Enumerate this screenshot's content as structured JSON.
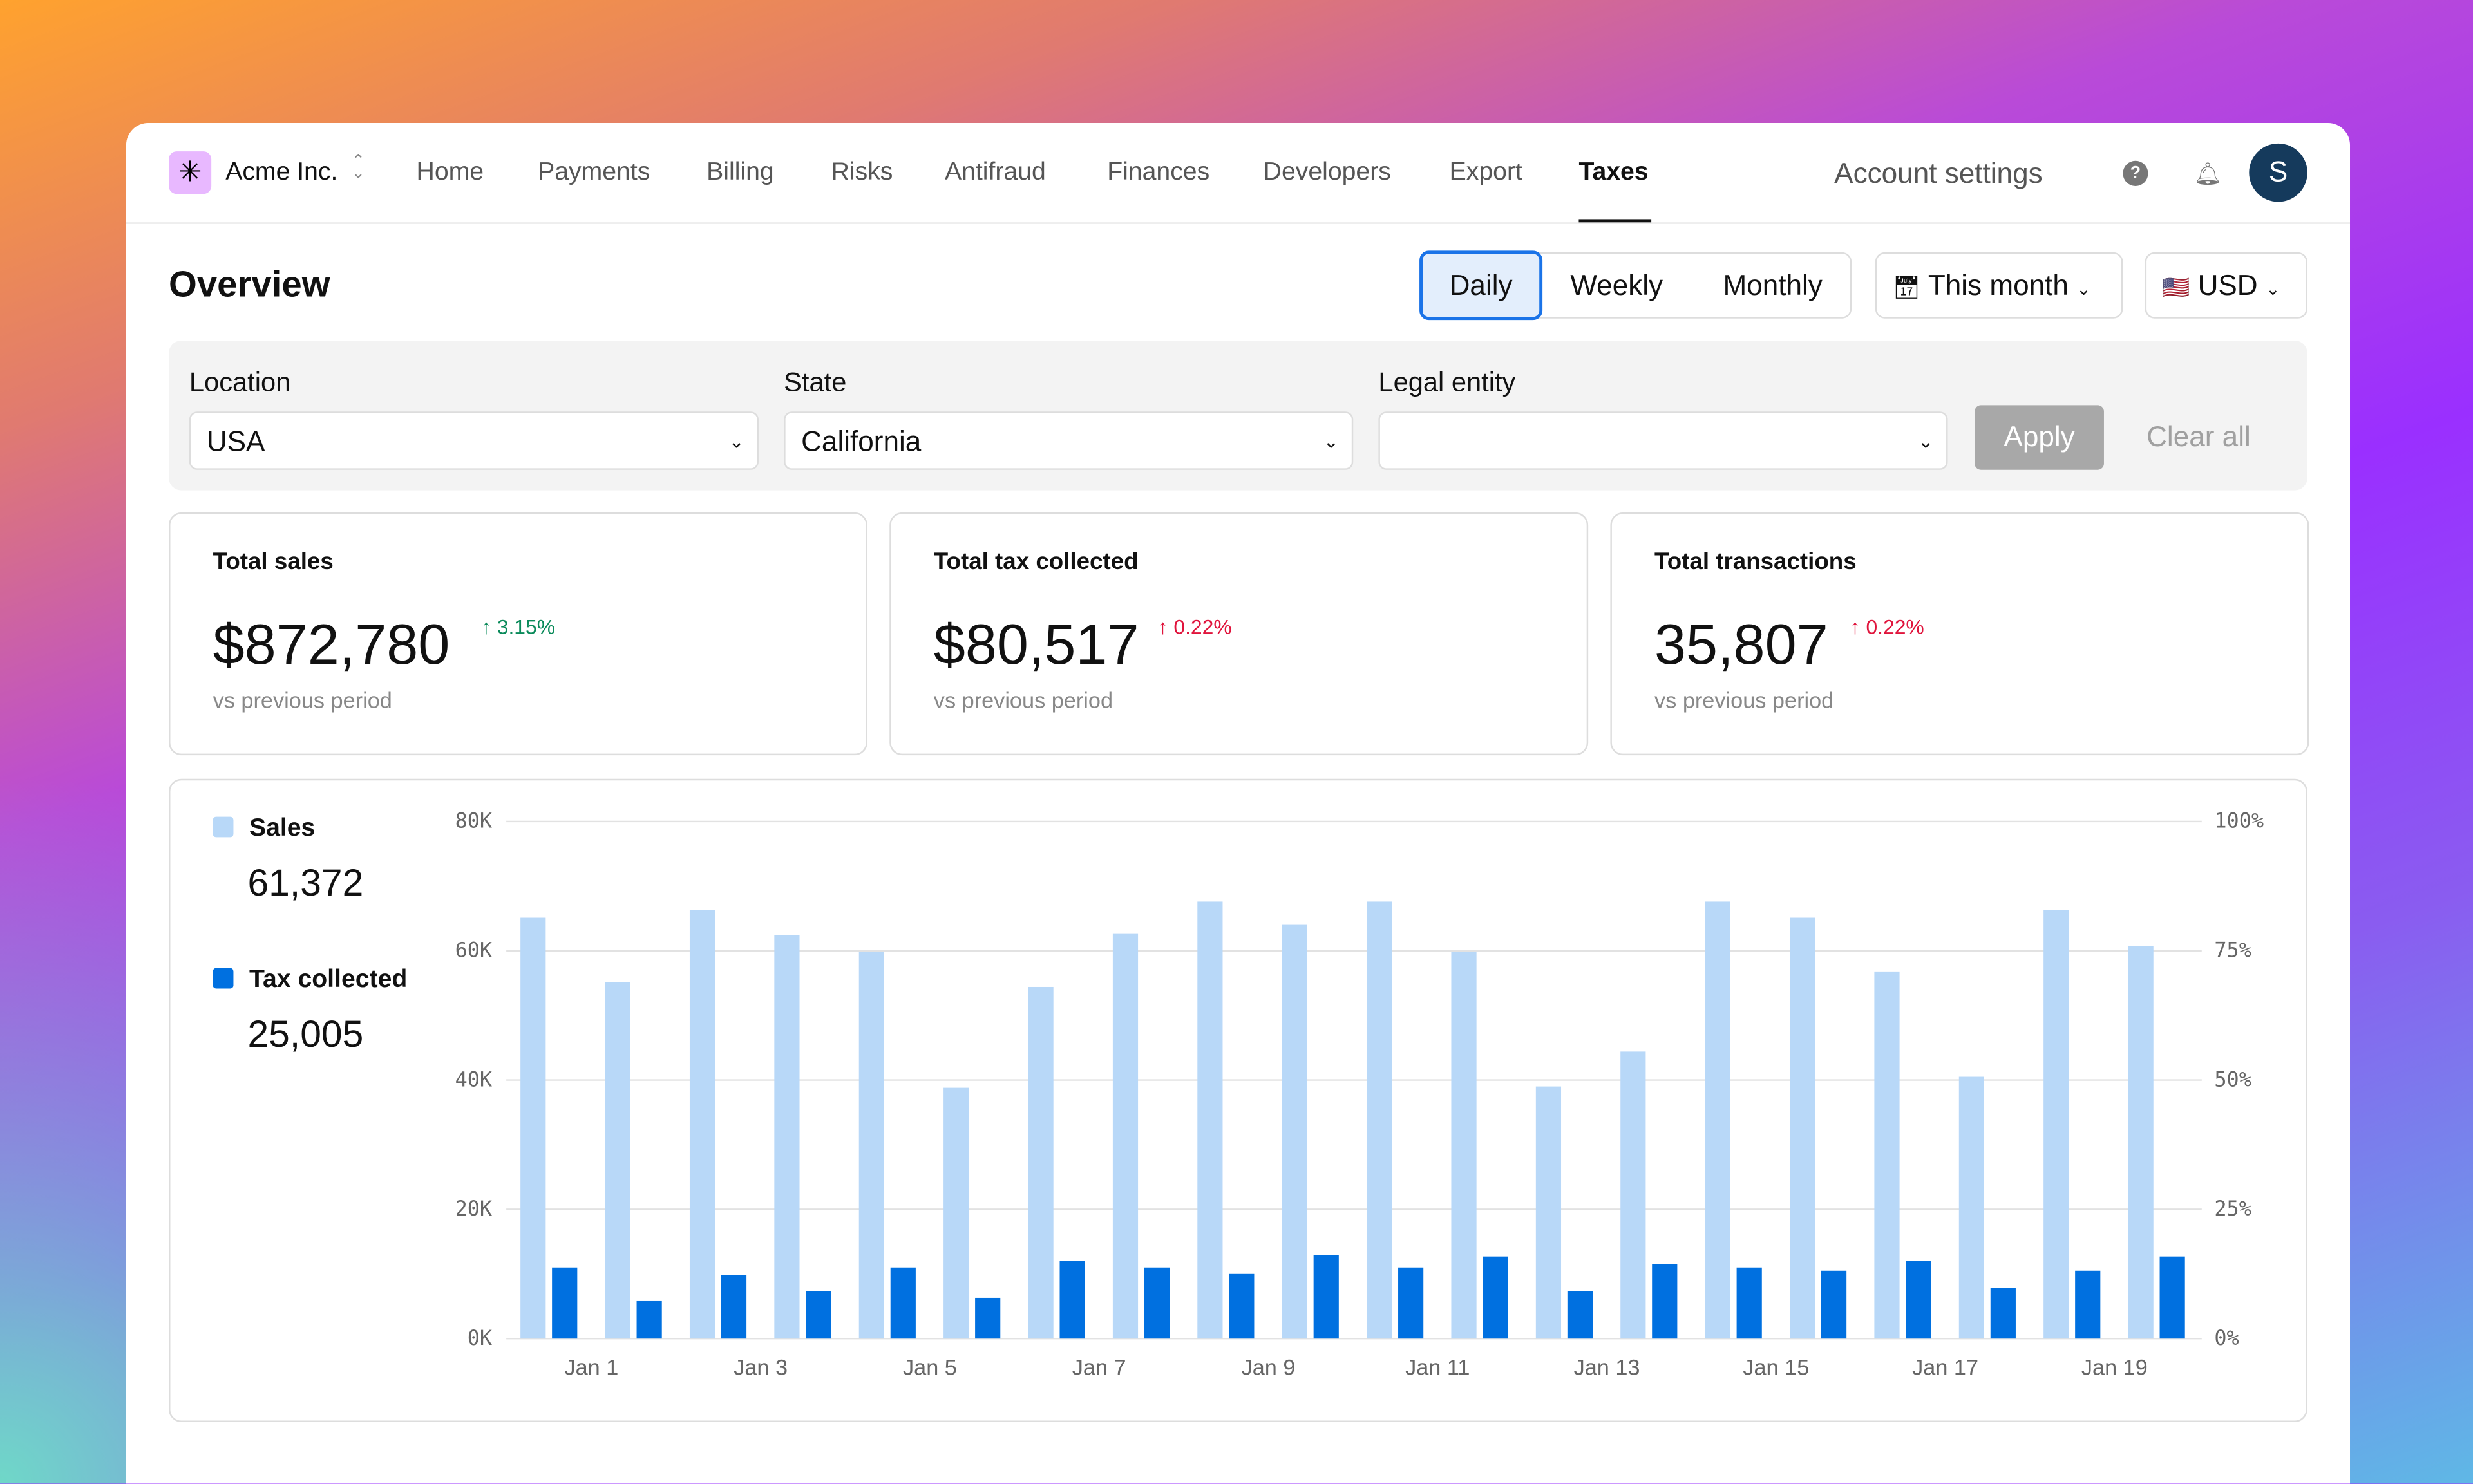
{
  "header": {
    "brand": "Acme Inc.",
    "nav": [
      "Home",
      "Payments",
      "Billing",
      "Risks",
      "Antifraud",
      "Finances",
      "Developers",
      "Export",
      "Taxes"
    ],
    "active_nav": "Taxes",
    "account_settings": "Account settings",
    "avatar_initial": "S",
    "icons": [
      "asterisk-logo-icon",
      "chevron-updown-icon",
      "help-icon",
      "bell-icon"
    ]
  },
  "overview": {
    "title": "Overview",
    "periods": [
      "Daily",
      "Weekly",
      "Monthly"
    ],
    "selected_period": "Daily",
    "date_range": "This month",
    "currency": "USD",
    "currency_flag": "🇺🇸"
  },
  "filters": {
    "location_label": "Location",
    "location_value": "USA",
    "state_label": "State",
    "state_value": "California",
    "legal_entity_label": "Legal entity",
    "legal_entity_value": "",
    "apply": "Apply",
    "clear": "Clear all"
  },
  "kpis": [
    {
      "label": "Total sales",
      "value": "$872,780",
      "delta": "3.15%",
      "delta_color": "#0a8a5a",
      "sub": "vs previous period"
    },
    {
      "label": "Total tax collected",
      "value": "$80,517",
      "delta": "0.22%",
      "delta_color": "#e0143c",
      "sub": "vs previous period"
    },
    {
      "label": "Total transactions",
      "value": "35,807",
      "delta": "0.22%",
      "delta_color": "#e0143c",
      "sub": "vs previous period"
    }
  ],
  "chart_data": {
    "type": "bar",
    "legend": [
      {
        "name": "Sales",
        "value": "61,372",
        "color": "#b8d8f8"
      },
      {
        "name": "Tax collected",
        "value": "25,005",
        "color": "#0070e0"
      }
    ],
    "categories": [
      "Jan 1",
      "Jan 2",
      "Jan 3",
      "Jan 4",
      "Jan 5",
      "Jan 6",
      "Jan 7",
      "Jan 8",
      "Jan 9",
      "Jan 10",
      "Jan 11",
      "Jan 12",
      "Jan 13",
      "Jan 14",
      "Jan 15",
      "Jan 16",
      "Jan 17",
      "Jan 18",
      "Jan 19",
      "Jan 20"
    ],
    "x_tick_labels": [
      "Jan 1",
      "Jan 3",
      "Jan 5",
      "Jan 7",
      "Jan 9",
      "Jan 11",
      "Jan 13",
      "Jan 15",
      "Jan 17",
      "Jan 19"
    ],
    "series": [
      {
        "name": "Sales",
        "values": [
          65100,
          55100,
          66300,
          62400,
          59800,
          38800,
          54400,
          62700,
          67600,
          64100,
          67600,
          59800,
          39000,
          44400,
          67600,
          65100,
          56800,
          40500,
          66300,
          60700
        ]
      },
      {
        "name": "Tax collected",
        "values": [
          11000,
          5900,
          9800,
          7300,
          11000,
          6300,
          12000,
          11000,
          10000,
          12900,
          11000,
          12700,
          7300,
          11500,
          11000,
          10500,
          12000,
          7800,
          10500,
          12700
        ]
      }
    ],
    "y_left": {
      "ticks": [
        "0K",
        "20K",
        "40K",
        "60K",
        "80K"
      ],
      "ylim": [
        0,
        80000
      ]
    },
    "y_right": {
      "ticks": [
        "0%",
        "25%",
        "50%",
        "75%",
        "100%"
      ]
    },
    "grid": true
  }
}
